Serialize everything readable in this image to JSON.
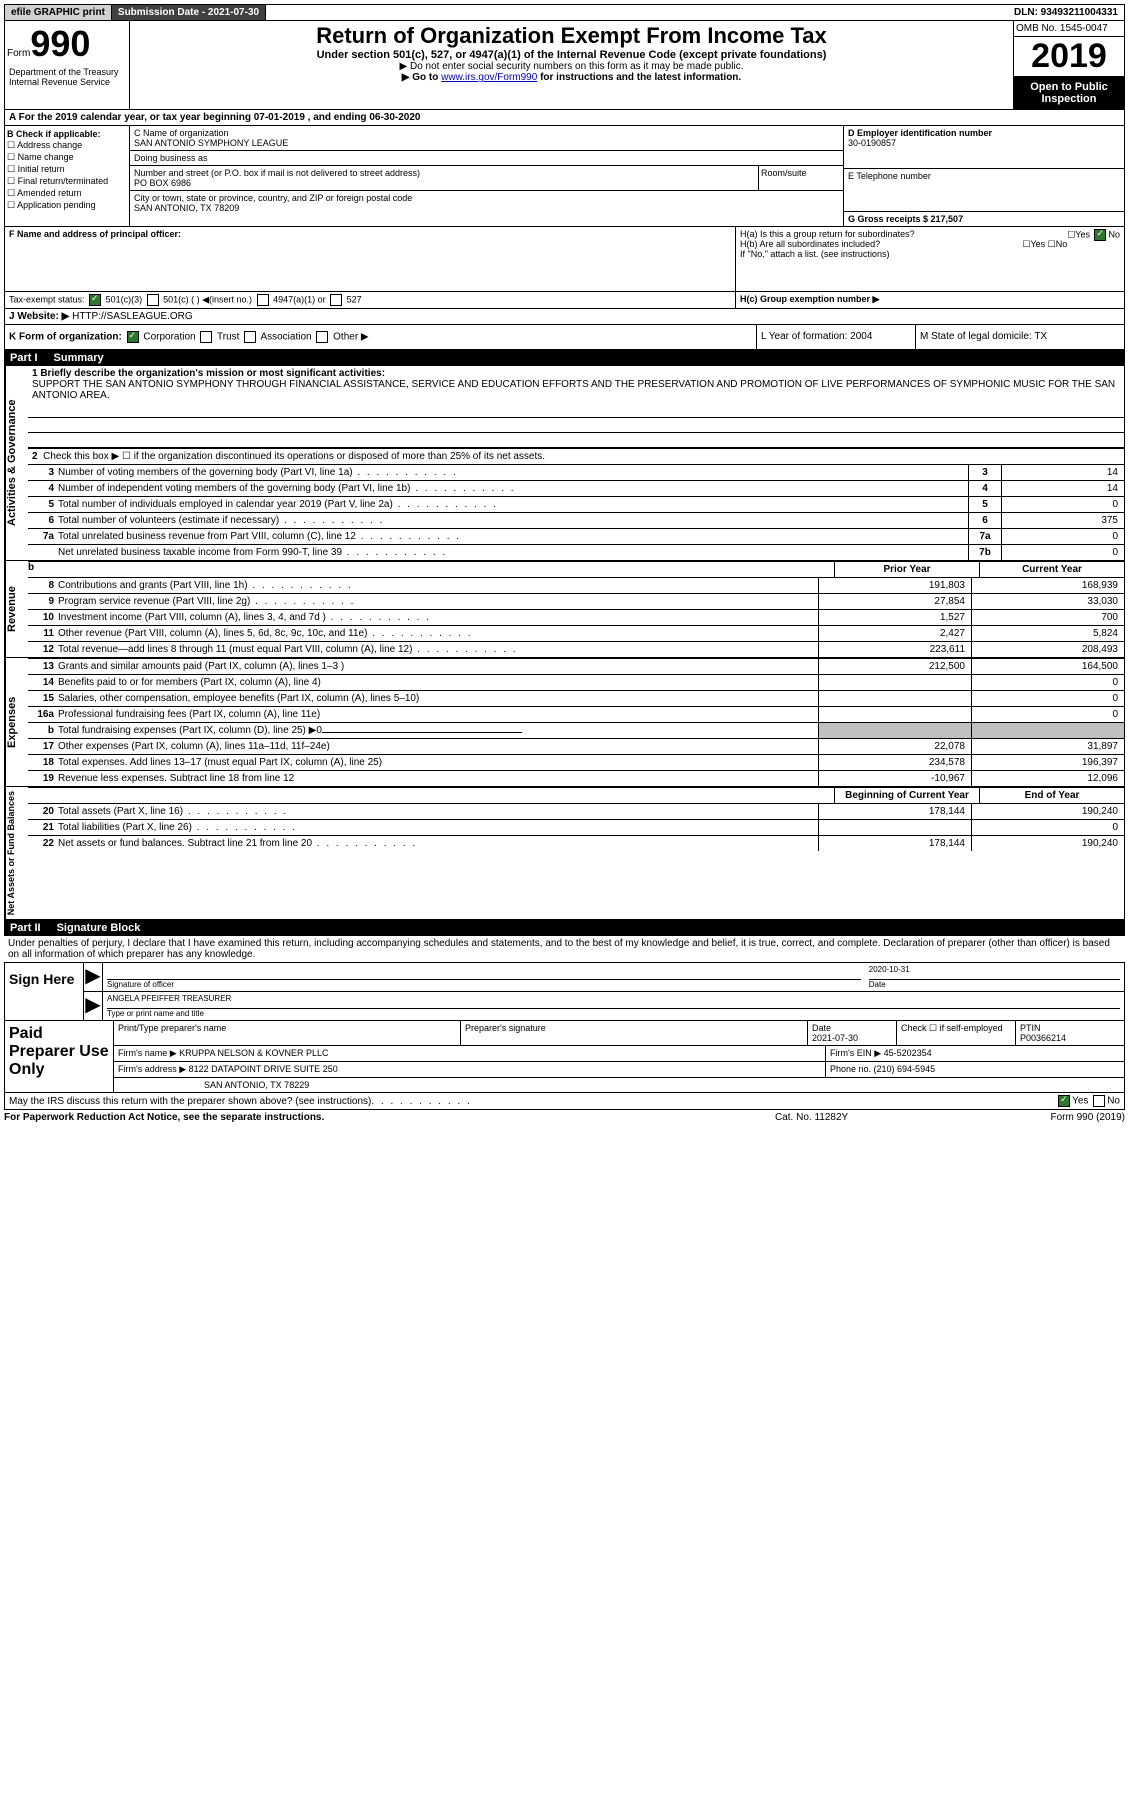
{
  "topbar": {
    "efile": "efile GRAPHIC print",
    "submission": "Submission Date - 2021-07-30",
    "dln": "DLN: 93493211004331"
  },
  "header": {
    "form_prefix": "Form",
    "form_num": "990",
    "dept": "Department of the Treasury\nInternal Revenue Service",
    "title": "Return of Organization Exempt From Income Tax",
    "subtitle": "Under section 501(c), 527, or 4947(a)(1) of the Internal Revenue Code (except private foundations)",
    "note1": "▶ Do not enter social security numbers on this form as it may be made public.",
    "note2_pre": "▶ Go to ",
    "note2_link": "www.irs.gov/Form990",
    "note2_post": " for instructions and the latest information.",
    "omb": "OMB No. 1545-0047",
    "year": "2019",
    "public": "Open to Public Inspection"
  },
  "sectionA": "A For the 2019 calendar year, or tax year beginning 07-01-2019   , and ending 06-30-2020",
  "checkboxes": {
    "label": "B Check if applicable:",
    "items": [
      "Address change",
      "Name change",
      "Initial return",
      "Final return/terminated",
      "Amended return",
      "Application pending"
    ]
  },
  "entity": {
    "name_label": "C Name of organization",
    "name": "SAN ANTONIO SYMPHONY LEAGUE",
    "dba_label": "Doing business as",
    "dba": "",
    "street_label": "Number and street (or P.O. box if mail is not delivered to street address)",
    "street": "PO BOX 6986",
    "room_label": "Room/suite",
    "city_label": "City or town, state or province, country, and ZIP or foreign postal code",
    "city": "SAN ANTONIO, TX  78209",
    "ein_label": "D Employer identification number",
    "ein": "30-0190857",
    "phone_label": "E Telephone number",
    "phone": "",
    "gross_label": "G Gross receipts $ 217,507"
  },
  "officer": {
    "f_label": "F  Name and address of principal officer:",
    "ha": "H(a)  Is this a group return for subordinates?",
    "hb": "H(b)  Are all subordinates included?",
    "hb_note": "If \"No,\" attach a list. (see instructions)",
    "hc": "H(c)  Group exemption number ▶"
  },
  "tax_status": {
    "label": "Tax-exempt status:",
    "opts": [
      "501(c)(3)",
      "501(c) (  ) ◀(insert no.)",
      "4947(a)(1) or",
      "527"
    ]
  },
  "website": {
    "label": "J Website: ▶",
    "value": "HTTP://SASLEAGUE.ORG"
  },
  "k": {
    "label": "K Form of organization:",
    "opts": [
      "Corporation",
      "Trust",
      "Association",
      "Other ▶"
    ],
    "l": "L Year of formation: 2004",
    "m": "M State of legal domicile: TX"
  },
  "part1": {
    "header": "Part I",
    "title": "Summary",
    "tab1": "Activities & Governance",
    "tab2": "Revenue",
    "tab3": "Expenses",
    "tab4": "Net Assets or Fund Balances",
    "line1_label": "1 Briefly describe the organization's mission or most significant activities:",
    "line1_text": "SUPPORT THE SAN ANTONIO SYMPHONY THROUGH FINANCIAL ASSISTANCE, SERVICE AND EDUCATION EFFORTS AND THE PRESERVATION AND PROMOTION OF LIVE PERFORMANCES OF SYMPHONIC MUSIC FOR THE SAN ANTONIO AREA.",
    "line2": "Check this box ▶ ☐ if the organization discontinued its operations or disposed of more than 25% of its net assets.",
    "rows_gov": [
      {
        "n": "3",
        "d": "Number of voting members of the governing body (Part VI, line 1a)",
        "b": "3",
        "v": "14"
      },
      {
        "n": "4",
        "d": "Number of independent voting members of the governing body (Part VI, line 1b)",
        "b": "4",
        "v": "14"
      },
      {
        "n": "5",
        "d": "Total number of individuals employed in calendar year 2019 (Part V, line 2a)",
        "b": "5",
        "v": "0"
      },
      {
        "n": "6",
        "d": "Total number of volunteers (estimate if necessary)",
        "b": "6",
        "v": "375"
      },
      {
        "n": "7a",
        "d": "Total unrelated business revenue from Part VIII, column (C), line 12",
        "b": "7a",
        "v": "0"
      },
      {
        "n": "",
        "d": "Net unrelated business taxable income from Form 990-T, line 39",
        "b": "7b",
        "v": "0"
      }
    ],
    "col_py": "Prior Year",
    "col_cy": "Current Year",
    "rows_rev": [
      {
        "n": "8",
        "d": "Contributions and grants (Part VIII, line 1h)",
        "py": "191,803",
        "cy": "168,939"
      },
      {
        "n": "9",
        "d": "Program service revenue (Part VIII, line 2g)",
        "py": "27,854",
        "cy": "33,030"
      },
      {
        "n": "10",
        "d": "Investment income (Part VIII, column (A), lines 3, 4, and 7d )",
        "py": "1,527",
        "cy": "700"
      },
      {
        "n": "11",
        "d": "Other revenue (Part VIII, column (A), lines 5, 6d, 8c, 9c, 10c, and 11e)",
        "py": "2,427",
        "cy": "5,824"
      },
      {
        "n": "12",
        "d": "Total revenue—add lines 8 through 11 (must equal Part VIII, column (A), line 12)",
        "py": "223,611",
        "cy": "208,493"
      }
    ],
    "rows_exp": [
      {
        "n": "13",
        "d": "Grants and similar amounts paid (Part IX, column (A), lines 1–3 )",
        "py": "212,500",
        "cy": "164,500"
      },
      {
        "n": "14",
        "d": "Benefits paid to or for members (Part IX, column (A), line 4)",
        "py": "",
        "cy": "0"
      },
      {
        "n": "15",
        "d": "Salaries, other compensation, employee benefits (Part IX, column (A), lines 5–10)",
        "py": "",
        "cy": "0"
      },
      {
        "n": "16a",
        "d": "Professional fundraising fees (Part IX, column (A), line 11e)",
        "py": "",
        "cy": "0"
      },
      {
        "n": "b",
        "d": "Total fundraising expenses (Part IX, column (D), line 25) ▶0",
        "py": "gray",
        "cy": "gray"
      },
      {
        "n": "17",
        "d": "Other expenses (Part IX, column (A), lines 11a–11d, 11f–24e)",
        "py": "22,078",
        "cy": "31,897"
      },
      {
        "n": "18",
        "d": "Total expenses. Add lines 13–17 (must equal Part IX, column (A), line 25)",
        "py": "234,578",
        "cy": "196,397"
      },
      {
        "n": "19",
        "d": "Revenue less expenses. Subtract line 18 from line 12",
        "py": "-10,967",
        "cy": "12,096"
      }
    ],
    "col_boy": "Beginning of Current Year",
    "col_eoy": "End of Year",
    "rows_net": [
      {
        "n": "20",
        "d": "Total assets (Part X, line 16)",
        "py": "178,144",
        "cy": "190,240"
      },
      {
        "n": "21",
        "d": "Total liabilities (Part X, line 26)",
        "py": "",
        "cy": "0"
      },
      {
        "n": "22",
        "d": "Net assets or fund balances. Subtract line 21 from line 20",
        "py": "178,144",
        "cy": "190,240"
      }
    ]
  },
  "part2": {
    "header": "Part II",
    "title": "Signature Block",
    "decl": "Under penalties of perjury, I declare that I have examined this return, including accompanying schedules and statements, and to the best of my knowledge and belief, it is true, correct, and complete. Declaration of preparer (other than officer) is based on all information of which preparer has any knowledge."
  },
  "sign": {
    "label": "Sign Here",
    "sig_label": "Signature of officer",
    "date": "2020-10-31",
    "date_label": "Date",
    "name": "ANGELA PFEIFFER TREASURER",
    "name_label": "Type or print name and title"
  },
  "prep": {
    "label": "Paid Preparer Use Only",
    "r1": {
      "a": "Print/Type preparer's name",
      "b": "Preparer's signature",
      "c": "Date",
      "c_val": "2021-07-30",
      "d": "Check ☐ if self-employed",
      "e": "PTIN",
      "e_val": "P00366214"
    },
    "r2": {
      "a": "Firm's name    ▶ KRUPPA NELSON & KOVNER PLLC",
      "b": "Firm's EIN ▶ 45-5202354"
    },
    "r3": {
      "a": "Firm's address ▶ 8122 DATAPOINT DRIVE SUITE 250",
      "b": "Phone no. (210) 694-5945"
    },
    "r4": {
      "a": "SAN ANTONIO, TX  78229"
    }
  },
  "discuss": "May the IRS discuss this return with the preparer shown above? (see instructions)",
  "footer": {
    "left": "For Paperwork Reduction Act Notice, see the separate instructions.",
    "mid": "Cat. No. 11282Y",
    "right": "Form 990 (2019)"
  }
}
